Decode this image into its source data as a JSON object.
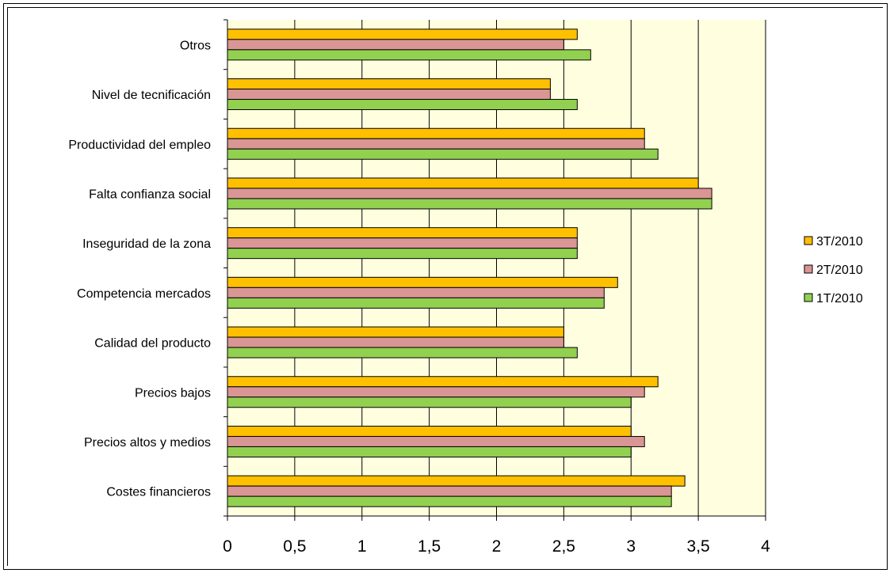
{
  "chart_data": {
    "type": "bar",
    "orientation": "horizontal",
    "categories": [
      "Otros",
      "Nivel de tecnificación",
      "Productividad del empleo",
      "Falta confianza social",
      "Inseguridad de la zona",
      "Competencia mercados",
      "Calidad del producto",
      "Precios bajos",
      "Precios altos y medios",
      "Costes financieros"
    ],
    "series": [
      {
        "name": "3T/2010",
        "color": "#ffc000",
        "values": [
          2.6,
          2.4,
          3.1,
          3.5,
          2.6,
          2.9,
          2.5,
          3.2,
          3.0,
          3.4
        ]
      },
      {
        "name": "2T/2010",
        "color": "#d99694",
        "values": [
          2.5,
          2.4,
          3.1,
          3.6,
          2.6,
          2.8,
          2.5,
          3.1,
          3.1,
          3.3
        ]
      },
      {
        "name": "1T/2010",
        "color": "#92d050",
        "values": [
          2.7,
          2.6,
          3.2,
          3.6,
          2.6,
          2.8,
          2.6,
          3.0,
          3.0,
          3.3
        ]
      }
    ],
    "xlim": [
      0,
      4
    ],
    "xticks": [
      "0",
      "0,5",
      "1",
      "1,5",
      "2",
      "2,5",
      "3",
      "3,5",
      "4"
    ],
    "plot_background": "#ffffe0",
    "grid": "vertical",
    "legend_position": "right"
  }
}
